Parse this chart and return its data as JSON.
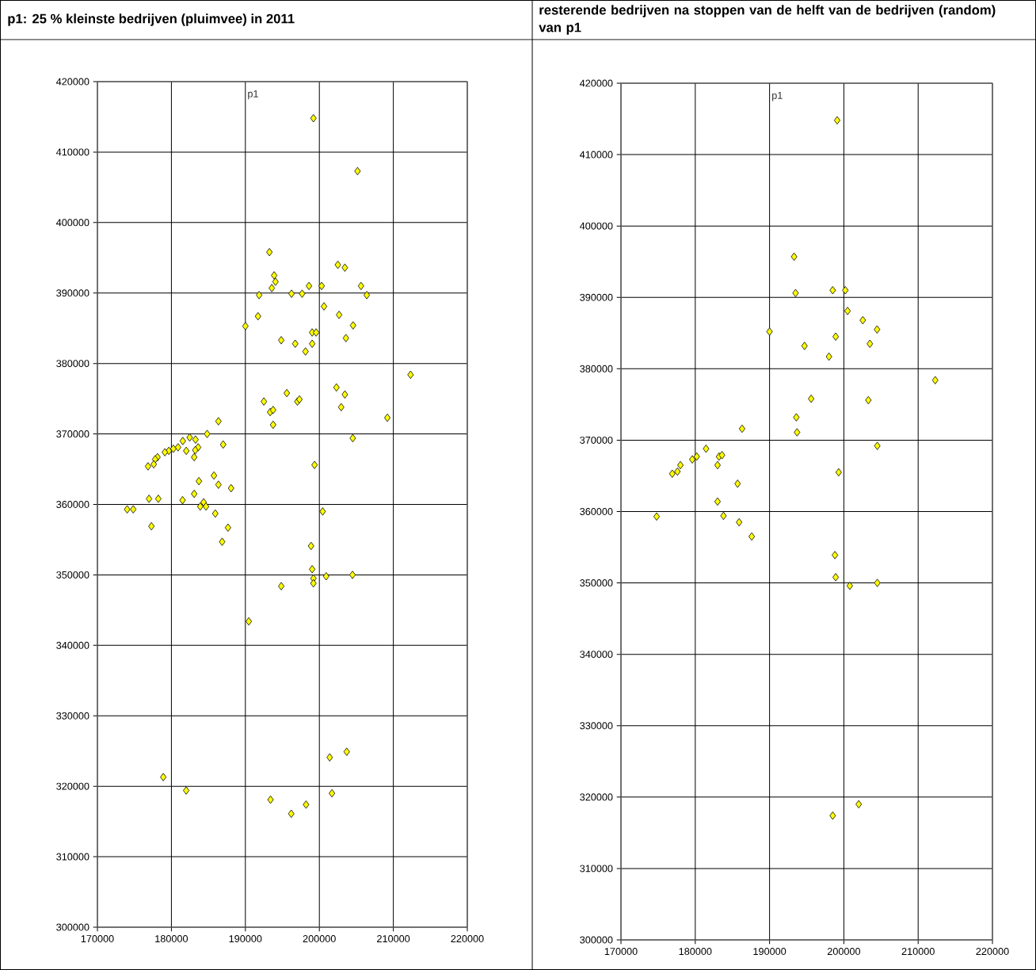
{
  "chart_data": [
    {
      "type": "scatter",
      "title": "p1: 25 % kleinste bedrijven (pluimvee) in 2011",
      "annotations": [
        "p1"
      ],
      "marker": "diamond",
      "grid": true,
      "xlim": [
        170000,
        220000
      ],
      "ylim": [
        300000,
        420000
      ],
      "xticks": [
        170000,
        180000,
        190000,
        200000,
        210000,
        220000
      ],
      "yticks": [
        300000,
        310000,
        320000,
        330000,
        340000,
        350000,
        360000,
        370000,
        380000,
        390000,
        400000,
        410000,
        420000
      ],
      "series": [
        {
          "color": "#ffff00",
          "x": [
            199200,
            205160,
            193250,
            202500,
            203450,
            193890,
            194070,
            193570,
            198600,
            200310,
            205630,
            191860,
            196240,
            197670,
            206410,
            200630,
            191710,
            202670,
            190000,
            204560,
            199030,
            199560,
            194850,
            203590,
            196740,
            199030,
            198130,
            212330,
            202310,
            203450,
            192500,
            195600,
            197030,
            197310,
            193350,
            193750,
            202950,
            209190,
            186360,
            193750,
            184830,
            204520,
            182470,
            183260,
            181540,
            187000,
            183610,
            180900,
            180260,
            179650,
            179120,
            182010,
            183220,
            178120,
            177800,
            177620,
            176840,
            183080,
            199350,
            185750,
            183720,
            186360,
            188070,
            183080,
            176980,
            178230,
            181510,
            184360,
            183900,
            184680,
            174020,
            174840,
            200450,
            185930,
            177300,
            187650,
            186860,
            198880,
            199030,
            204480,
            200920,
            199200,
            199200,
            194850,
            190460,
            178900,
            182000,
            193400,
            196200,
            198200,
            201400,
            203700,
            201700
          ],
          "values": [
            414800,
            407300,
            395800,
            394000,
            393600,
            392500,
            391600,
            390700,
            391000,
            391000,
            391000,
            389700,
            389900,
            389900,
            389700,
            388100,
            386700,
            386900,
            385300,
            385400,
            384400,
            384400,
            383300,
            383600,
            382800,
            382800,
            381700,
            378400,
            376600,
            375600,
            374600,
            375800,
            374600,
            374900,
            373100,
            373400,
            373800,
            372300,
            371800,
            371300,
            370000,
            369400,
            369500,
            369200,
            369000,
            368500,
            368100,
            368100,
            367900,
            367600,
            367400,
            367600,
            367700,
            366700,
            366400,
            365700,
            365400,
            366700,
            365600,
            364100,
            363300,
            362800,
            362300,
            361500,
            360800,
            360800,
            360600,
            360300,
            359700,
            359700,
            359300,
            359300,
            359000,
            358700,
            356900,
            356700,
            354700,
            354100,
            350800,
            350000,
            349800,
            349500,
            348800,
            348400,
            343400,
            321300,
            319400,
            318100,
            316100,
            317400,
            324100,
            324900,
            319000
          ]
        }
      ]
    },
    {
      "type": "scatter",
      "title": "resterende bedrijven na stoppen van de helft van de bedrijven (random) van p1",
      "annotations": [
        "p1"
      ],
      "marker": "diamond",
      "grid": true,
      "xlim": [
        170000,
        220000
      ],
      "ylim": [
        300000,
        420000
      ],
      "xticks": [
        170000,
        180000,
        190000,
        200000,
        210000,
        220000
      ],
      "yticks": [
        300000,
        310000,
        320000,
        330000,
        340000,
        350000,
        360000,
        370000,
        380000,
        390000,
        400000,
        410000,
        420000
      ],
      "series": [
        {
          "color": "#ffff00",
          "x": [
            199100,
            193300,
            193500,
            198500,
            200200,
            200500,
            202550,
            204470,
            190000,
            198900,
            194700,
            203500,
            198000,
            212300,
            195600,
            203300,
            193600,
            193700,
            186300,
            204500,
            181450,
            180200,
            179600,
            178000,
            177600,
            176900,
            183200,
            183600,
            183000,
            199300,
            185700,
            183000,
            174800,
            183800,
            185900,
            187600,
            198800,
            198900,
            200800,
            204500,
            198500,
            202000
          ],
          "values": [
            414800,
            395700,
            390600,
            391000,
            391000,
            388100,
            386800,
            385500,
            385200,
            384500,
            383200,
            383500,
            381700,
            378400,
            375800,
            375600,
            373200,
            371100,
            371600,
            369200,
            368800,
            367700,
            367300,
            366500,
            365600,
            365300,
            367700,
            367900,
            366500,
            365500,
            363900,
            361400,
            359300,
            359400,
            358500,
            356500,
            353900,
            350800,
            349600,
            350000,
            317400,
            319000
          ]
        }
      ]
    }
  ]
}
